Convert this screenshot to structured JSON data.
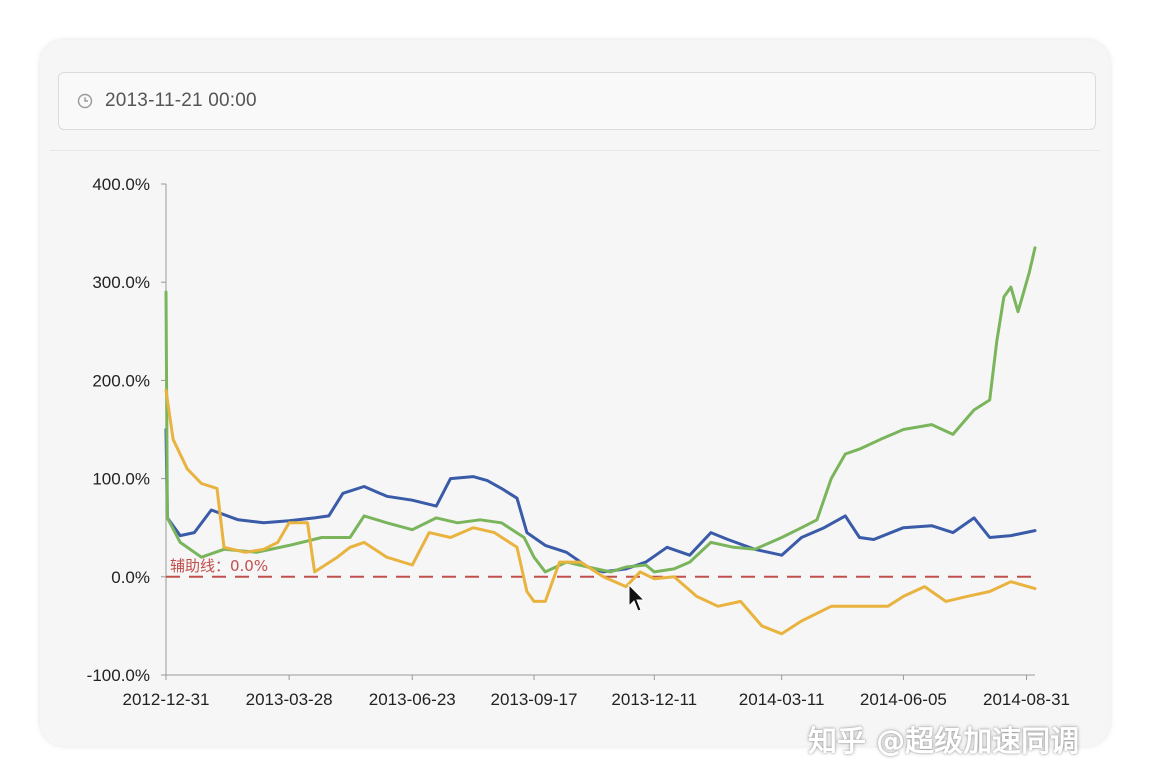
{
  "date_picker": {
    "value": "2013-11-21 00:00",
    "icon": "clock-icon"
  },
  "watermark": "知乎 @超级加速同调",
  "chart_data": {
    "type": "line",
    "title": "",
    "xlabel": "",
    "ylabel": "",
    "x_ticks": [
      "2012-12-31",
      "2013-03-28",
      "2013-06-23",
      "2013-09-17",
      "2013-12-11",
      "2014-03-11",
      "2014-06-05",
      "2014-08-31"
    ],
    "y_ticks": [
      "400.0%",
      "300.0%",
      "200.0%",
      "100.0%",
      "0.0%",
      "-100.0%"
    ],
    "ylim": [
      -100,
      400
    ],
    "x_range": [
      "2012-12-31",
      "2014-09-06"
    ],
    "grid": false,
    "reference_line": {
      "label": "辅助线：0.0%",
      "value": 0,
      "color": "#c0504d"
    },
    "series": [
      {
        "color": "#3a5ba8",
        "points": [
          [
            "2012-12-31",
            150
          ],
          [
            "2013-01-01",
            60
          ],
          [
            "2013-01-10",
            42
          ],
          [
            "2013-01-20",
            45
          ],
          [
            "2013-02-01",
            68
          ],
          [
            "2013-02-20",
            58
          ],
          [
            "2013-03-10",
            55
          ],
          [
            "2013-03-28",
            57
          ],
          [
            "2013-04-15",
            60
          ],
          [
            "2013-04-25",
            62
          ],
          [
            "2013-05-05",
            85
          ],
          [
            "2013-05-20",
            92
          ],
          [
            "2013-06-05",
            82
          ],
          [
            "2013-06-23",
            78
          ],
          [
            "2013-07-10",
            72
          ],
          [
            "2013-07-20",
            100
          ],
          [
            "2013-08-05",
            102
          ],
          [
            "2013-08-15",
            98
          ],
          [
            "2013-08-25",
            90
          ],
          [
            "2013-09-05",
            80
          ],
          [
            "2013-09-12",
            45
          ],
          [
            "2013-09-25",
            32
          ],
          [
            "2013-10-10",
            25
          ],
          [
            "2013-10-25",
            10
          ],
          [
            "2013-11-05",
            5
          ],
          [
            "2013-11-21",
            8
          ],
          [
            "2013-12-05",
            15
          ],
          [
            "2013-12-20",
            30
          ],
          [
            "2014-01-05",
            22
          ],
          [
            "2014-01-20",
            45
          ],
          [
            "2014-02-01",
            38
          ],
          [
            "2014-02-20",
            28
          ],
          [
            "2014-03-11",
            22
          ],
          [
            "2014-03-25",
            40
          ],
          [
            "2014-04-10",
            50
          ],
          [
            "2014-04-25",
            62
          ],
          [
            "2014-05-05",
            40
          ],
          [
            "2014-05-15",
            38
          ],
          [
            "2014-06-05",
            50
          ],
          [
            "2014-06-25",
            52
          ],
          [
            "2014-07-10",
            45
          ],
          [
            "2014-07-25",
            60
          ],
          [
            "2014-08-05",
            40
          ],
          [
            "2014-08-20",
            42
          ],
          [
            "2014-09-06",
            47
          ]
        ]
      },
      {
        "color": "#7ab55c",
        "points": [
          [
            "2012-12-31",
            290
          ],
          [
            "2013-01-01",
            60
          ],
          [
            "2013-01-10",
            35
          ],
          [
            "2013-01-25",
            20
          ],
          [
            "2013-02-10",
            28
          ],
          [
            "2013-03-05",
            25
          ],
          [
            "2013-03-28",
            32
          ],
          [
            "2013-04-20",
            40
          ],
          [
            "2013-05-10",
            40
          ],
          [
            "2013-05-20",
            62
          ],
          [
            "2013-06-05",
            55
          ],
          [
            "2013-06-23",
            48
          ],
          [
            "2013-07-10",
            60
          ],
          [
            "2013-07-25",
            55
          ],
          [
            "2013-08-10",
            58
          ],
          [
            "2013-08-25",
            55
          ],
          [
            "2013-09-10",
            40
          ],
          [
            "2013-09-17",
            20
          ],
          [
            "2013-09-25",
            5
          ],
          [
            "2013-10-10",
            15
          ],
          [
            "2013-10-25",
            10
          ],
          [
            "2013-11-10",
            5
          ],
          [
            "2013-11-21",
            10
          ],
          [
            "2013-12-05",
            12
          ],
          [
            "2013-12-11",
            5
          ],
          [
            "2013-12-25",
            8
          ],
          [
            "2014-01-05",
            15
          ],
          [
            "2014-01-20",
            35
          ],
          [
            "2014-02-05",
            30
          ],
          [
            "2014-02-20",
            28
          ],
          [
            "2014-03-11",
            40
          ],
          [
            "2014-03-25",
            50
          ],
          [
            "2014-04-05",
            58
          ],
          [
            "2014-04-15",
            100
          ],
          [
            "2014-04-25",
            125
          ],
          [
            "2014-05-05",
            130
          ],
          [
            "2014-05-20",
            140
          ],
          [
            "2014-06-05",
            150
          ],
          [
            "2014-06-25",
            155
          ],
          [
            "2014-07-10",
            145
          ],
          [
            "2014-07-25",
            170
          ],
          [
            "2014-08-05",
            180
          ],
          [
            "2014-08-10",
            240
          ],
          [
            "2014-08-15",
            285
          ],
          [
            "2014-08-20",
            295
          ],
          [
            "2014-08-25",
            270
          ],
          [
            "2014-08-28",
            285
          ],
          [
            "2014-09-02",
            310
          ],
          [
            "2014-09-06",
            335
          ]
        ]
      },
      {
        "color": "#e9b33f",
        "points": [
          [
            "2012-12-31",
            190
          ],
          [
            "2013-01-05",
            140
          ],
          [
            "2013-01-15",
            110
          ],
          [
            "2013-01-25",
            95
          ],
          [
            "2013-02-05",
            90
          ],
          [
            "2013-02-10",
            30
          ],
          [
            "2013-02-25",
            25
          ],
          [
            "2013-03-10",
            28
          ],
          [
            "2013-03-20",
            35
          ],
          [
            "2013-03-28",
            55
          ],
          [
            "2013-04-10",
            55
          ],
          [
            "2013-04-15",
            5
          ],
          [
            "2013-05-01",
            20
          ],
          [
            "2013-05-10",
            30
          ],
          [
            "2013-05-20",
            35
          ],
          [
            "2013-06-05",
            20
          ],
          [
            "2013-06-23",
            12
          ],
          [
            "2013-07-05",
            45
          ],
          [
            "2013-07-20",
            40
          ],
          [
            "2013-08-05",
            50
          ],
          [
            "2013-08-20",
            45
          ],
          [
            "2013-09-05",
            30
          ],
          [
            "2013-09-12",
            -15
          ],
          [
            "2013-09-17",
            -25
          ],
          [
            "2013-09-25",
            -25
          ],
          [
            "2013-10-05",
            15
          ],
          [
            "2013-10-20",
            15
          ],
          [
            "2013-11-05",
            0
          ],
          [
            "2013-11-21",
            -10
          ],
          [
            "2013-12-01",
            5
          ],
          [
            "2013-12-11",
            -2
          ],
          [
            "2013-12-25",
            0
          ],
          [
            "2014-01-10",
            -20
          ],
          [
            "2014-01-25",
            -30
          ],
          [
            "2014-02-10",
            -25
          ],
          [
            "2014-02-25",
            -50
          ],
          [
            "2014-03-11",
            -58
          ],
          [
            "2014-03-25",
            -45
          ],
          [
            "2014-04-15",
            -30
          ],
          [
            "2014-05-05",
            -30
          ],
          [
            "2014-05-25",
            -30
          ],
          [
            "2014-06-05",
            -20
          ],
          [
            "2014-06-20",
            -10
          ],
          [
            "2014-07-05",
            -25
          ],
          [
            "2014-07-20",
            -20
          ],
          [
            "2014-08-05",
            -15
          ],
          [
            "2014-08-20",
            -5
          ],
          [
            "2014-09-06",
            -12
          ]
        ]
      }
    ]
  }
}
